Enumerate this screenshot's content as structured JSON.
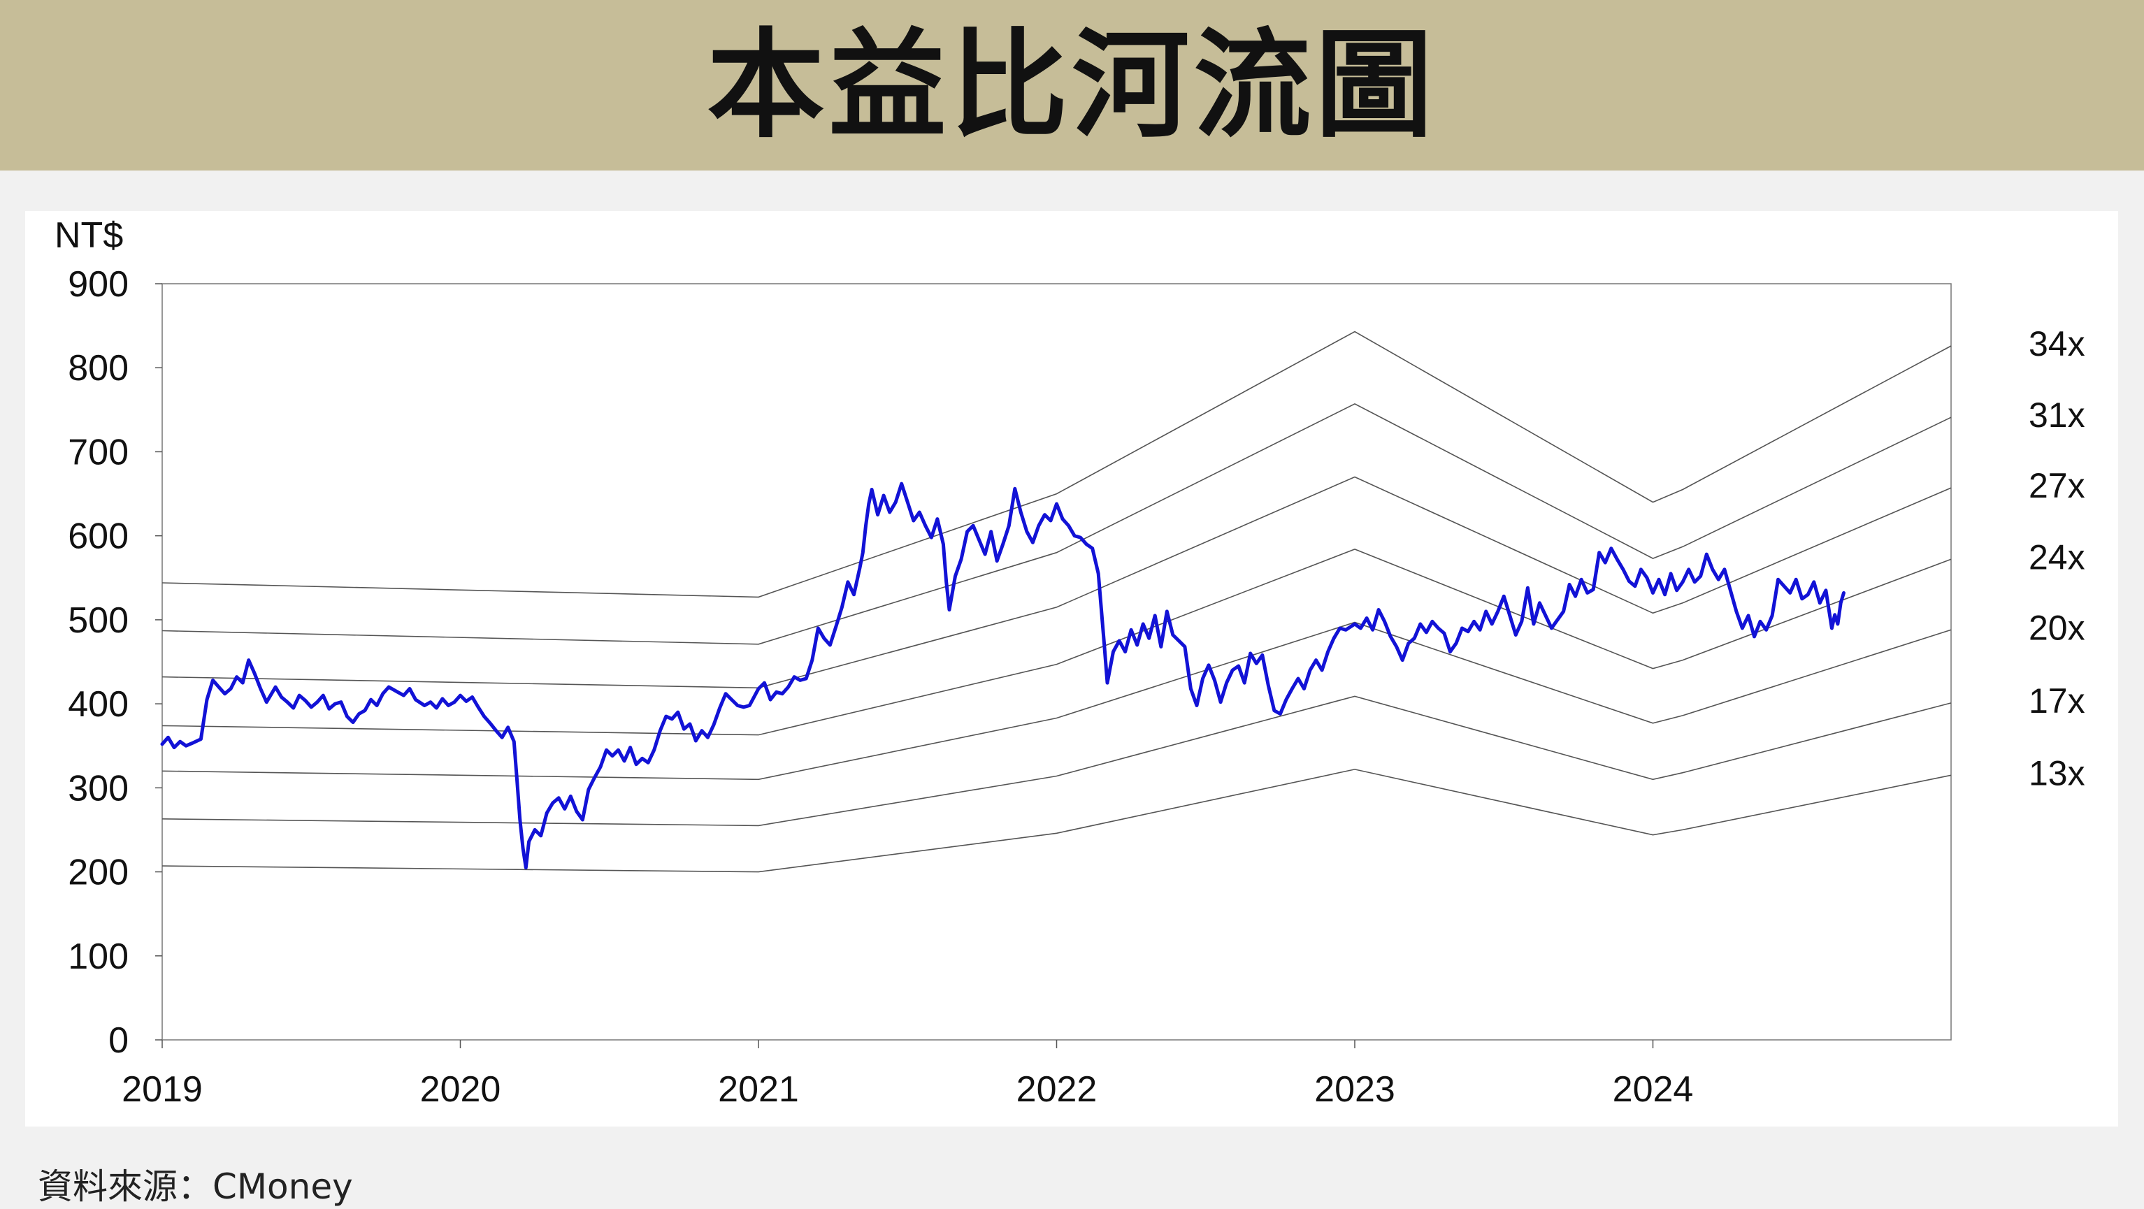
{
  "title": "本益比河流圖",
  "source": "資料來源：CMoney",
  "chart_data": {
    "type": "line",
    "ylabel": "NT$",
    "ylim": [
      0,
      900
    ],
    "yticks": [
      0,
      100,
      200,
      300,
      400,
      500,
      600,
      700,
      800,
      900
    ],
    "xlim": [
      2019.0,
      2025.0
    ],
    "xticks": [
      2019,
      2020,
      2021,
      2022,
      2023,
      2024
    ],
    "grid": false,
    "colors": {
      "price": "#1212d6",
      "bands": "#555555"
    },
    "bands": [
      {
        "name": "34x",
        "points": [
          [
            2019.0,
            544
          ],
          [
            2021.0,
            527
          ],
          [
            2022.0,
            650
          ],
          [
            2023.0,
            843
          ],
          [
            2024.0,
            640
          ],
          [
            2024.1,
            655
          ],
          [
            2025.0,
            826
          ]
        ]
      },
      {
        "name": "31x",
        "points": [
          [
            2019.0,
            487
          ],
          [
            2021.0,
            471
          ],
          [
            2022.0,
            580
          ],
          [
            2023.0,
            757
          ],
          [
            2024.0,
            573
          ],
          [
            2024.1,
            587
          ],
          [
            2025.0,
            741
          ]
        ]
      },
      {
        "name": "27x",
        "points": [
          [
            2019.0,
            432
          ],
          [
            2021.0,
            419
          ],
          [
            2022.0,
            515
          ],
          [
            2023.0,
            670
          ],
          [
            2024.0,
            508
          ],
          [
            2024.1,
            520
          ],
          [
            2025.0,
            657
          ]
        ]
      },
      {
        "name": "24x",
        "points": [
          [
            2019.0,
            374
          ],
          [
            2021.0,
            363
          ],
          [
            2022.0,
            447
          ],
          [
            2023.0,
            584
          ],
          [
            2024.0,
            442
          ],
          [
            2024.1,
            452
          ],
          [
            2025.0,
            572
          ]
        ]
      },
      {
        "name": "20x",
        "points": [
          [
            2019.0,
            320
          ],
          [
            2021.0,
            310
          ],
          [
            2022.0,
            383
          ],
          [
            2023.0,
            497
          ],
          [
            2024.0,
            377
          ],
          [
            2024.1,
            386
          ],
          [
            2025.0,
            488
          ]
        ]
      },
      {
        "name": "17x",
        "points": [
          [
            2019.0,
            263
          ],
          [
            2021.0,
            255
          ],
          [
            2022.0,
            314
          ],
          [
            2023.0,
            409
          ],
          [
            2024.0,
            310
          ],
          [
            2024.1,
            318
          ],
          [
            2025.0,
            401
          ]
        ]
      },
      {
        "name": "13x",
        "points": [
          [
            2019.0,
            207
          ],
          [
            2021.0,
            200
          ],
          [
            2022.0,
            246
          ],
          [
            2023.0,
            322
          ],
          [
            2024.0,
            244
          ],
          [
            2024.1,
            250
          ],
          [
            2025.0,
            315
          ]
        ]
      }
    ],
    "price_series": [
      [
        2019.0,
        352
      ],
      [
        2019.02,
        360
      ],
      [
        2019.04,
        348
      ],
      [
        2019.06,
        355
      ],
      [
        2019.08,
        350
      ],
      [
        2019.1,
        353
      ],
      [
        2019.13,
        358
      ],
      [
        2019.15,
        405
      ],
      [
        2019.17,
        428
      ],
      [
        2019.19,
        420
      ],
      [
        2019.21,
        412
      ],
      [
        2019.23,
        418
      ],
      [
        2019.25,
        432
      ],
      [
        2019.27,
        425
      ],
      [
        2019.29,
        452
      ],
      [
        2019.31,
        436
      ],
      [
        2019.33,
        418
      ],
      [
        2019.35,
        402
      ],
      [
        2019.38,
        420
      ],
      [
        2019.4,
        408
      ],
      [
        2019.42,
        402
      ],
      [
        2019.44,
        395
      ],
      [
        2019.46,
        410
      ],
      [
        2019.48,
        404
      ],
      [
        2019.5,
        396
      ],
      [
        2019.52,
        402
      ],
      [
        2019.54,
        410
      ],
      [
        2019.56,
        394
      ],
      [
        2019.58,
        400
      ],
      [
        2019.6,
        402
      ],
      [
        2019.62,
        385
      ],
      [
        2019.64,
        378
      ],
      [
        2019.66,
        388
      ],
      [
        2019.68,
        392
      ],
      [
        2019.7,
        405
      ],
      [
        2019.72,
        398
      ],
      [
        2019.74,
        412
      ],
      [
        2019.76,
        420
      ],
      [
        2019.79,
        414
      ],
      [
        2019.81,
        410
      ],
      [
        2019.83,
        418
      ],
      [
        2019.85,
        405
      ],
      [
        2019.88,
        398
      ],
      [
        2019.9,
        402
      ],
      [
        2019.92,
        395
      ],
      [
        2019.94,
        406
      ],
      [
        2019.96,
        398
      ],
      [
        2019.98,
        402
      ],
      [
        2020.0,
        410
      ],
      [
        2020.02,
        403
      ],
      [
        2020.04,
        408
      ],
      [
        2020.06,
        396
      ],
      [
        2020.08,
        385
      ],
      [
        2020.1,
        377
      ],
      [
        2020.12,
        368
      ],
      [
        2020.14,
        360
      ],
      [
        2020.16,
        372
      ],
      [
        2020.18,
        355
      ],
      [
        2020.19,
        310
      ],
      [
        2020.2,
        262
      ],
      [
        2020.21,
        228
      ],
      [
        2020.22,
        205
      ],
      [
        2020.23,
        236
      ],
      [
        2020.25,
        250
      ],
      [
        2020.27,
        243
      ],
      [
        2020.29,
        270
      ],
      [
        2020.31,
        282
      ],
      [
        2020.33,
        288
      ],
      [
        2020.35,
        275
      ],
      [
        2020.37,
        290
      ],
      [
        2020.39,
        272
      ],
      [
        2020.41,
        262
      ],
      [
        2020.43,
        298
      ],
      [
        2020.45,
        312
      ],
      [
        2020.47,
        325
      ],
      [
        2020.49,
        345
      ],
      [
        2020.51,
        338
      ],
      [
        2020.53,
        345
      ],
      [
        2020.55,
        332
      ],
      [
        2020.57,
        348
      ],
      [
        2020.59,
        328
      ],
      [
        2020.61,
        335
      ],
      [
        2020.63,
        330
      ],
      [
        2020.65,
        345
      ],
      [
        2020.67,
        368
      ],
      [
        2020.69,
        385
      ],
      [
        2020.71,
        382
      ],
      [
        2020.73,
        390
      ],
      [
        2020.75,
        370
      ],
      [
        2020.77,
        376
      ],
      [
        2020.79,
        356
      ],
      [
        2020.81,
        368
      ],
      [
        2020.83,
        360
      ],
      [
        2020.85,
        375
      ],
      [
        2020.87,
        395
      ],
      [
        2020.89,
        412
      ],
      [
        2020.91,
        405
      ],
      [
        2020.93,
        398
      ],
      [
        2020.95,
        396
      ],
      [
        2020.97,
        398
      ],
      [
        2021.0,
        418
      ],
      [
        2021.02,
        425
      ],
      [
        2021.04,
        405
      ],
      [
        2021.06,
        414
      ],
      [
        2021.08,
        412
      ],
      [
        2021.1,
        420
      ],
      [
        2021.12,
        432
      ],
      [
        2021.14,
        428
      ],
      [
        2021.16,
        430
      ],
      [
        2021.18,
        452
      ],
      [
        2021.2,
        490
      ],
      [
        2021.22,
        478
      ],
      [
        2021.24,
        470
      ],
      [
        2021.26,
        492
      ],
      [
        2021.28,
        515
      ],
      [
        2021.3,
        545
      ],
      [
        2021.32,
        530
      ],
      [
        2021.34,
        562
      ],
      [
        2021.35,
        580
      ],
      [
        2021.36,
        612
      ],
      [
        2021.37,
        638
      ],
      [
        2021.38,
        655
      ],
      [
        2021.4,
        625
      ],
      [
        2021.42,
        648
      ],
      [
        2021.44,
        628
      ],
      [
        2021.46,
        640
      ],
      [
        2021.48,
        662
      ],
      [
        2021.5,
        640
      ],
      [
        2021.52,
        618
      ],
      [
        2021.54,
        628
      ],
      [
        2021.56,
        612
      ],
      [
        2021.58,
        598
      ],
      [
        2021.6,
        620
      ],
      [
        2021.62,
        590
      ],
      [
        2021.63,
        545
      ],
      [
        2021.64,
        512
      ],
      [
        2021.66,
        552
      ],
      [
        2021.68,
        572
      ],
      [
        2021.7,
        605
      ],
      [
        2021.72,
        612
      ],
      [
        2021.74,
        595
      ],
      [
        2021.76,
        578
      ],
      [
        2021.78,
        605
      ],
      [
        2021.8,
        570
      ],
      [
        2021.82,
        590
      ],
      [
        2021.84,
        612
      ],
      [
        2021.86,
        656
      ],
      [
        2021.88,
        628
      ],
      [
        2021.9,
        605
      ],
      [
        2021.92,
        592
      ],
      [
        2021.94,
        612
      ],
      [
        2021.96,
        625
      ],
      [
        2021.98,
        618
      ],
      [
        2022.0,
        638
      ],
      [
        2022.02,
        620
      ],
      [
        2022.04,
        612
      ],
      [
        2022.06,
        600
      ],
      [
        2022.08,
        598
      ],
      [
        2022.1,
        590
      ],
      [
        2022.12,
        585
      ],
      [
        2022.14,
        555
      ],
      [
        2022.16,
        470
      ],
      [
        2022.17,
        425
      ],
      [
        2022.19,
        462
      ],
      [
        2022.21,
        475
      ],
      [
        2022.23,
        462
      ],
      [
        2022.25,
        488
      ],
      [
        2022.27,
        470
      ],
      [
        2022.29,
        495
      ],
      [
        2022.31,
        478
      ],
      [
        2022.33,
        505
      ],
      [
        2022.35,
        468
      ],
      [
        2022.37,
        510
      ],
      [
        2022.39,
        482
      ],
      [
        2022.41,
        475
      ],
      [
        2022.43,
        468
      ],
      [
        2022.45,
        418
      ],
      [
        2022.47,
        398
      ],
      [
        2022.49,
        430
      ],
      [
        2022.51,
        446
      ],
      [
        2022.53,
        428
      ],
      [
        2022.55,
        402
      ],
      [
        2022.57,
        425
      ],
      [
        2022.59,
        440
      ],
      [
        2022.61,
        445
      ],
      [
        2022.63,
        425
      ],
      [
        2022.65,
        460
      ],
      [
        2022.67,
        448
      ],
      [
        2022.69,
        458
      ],
      [
        2022.71,
        422
      ],
      [
        2022.73,
        392
      ],
      [
        2022.75,
        388
      ],
      [
        2022.77,
        405
      ],
      [
        2022.79,
        418
      ],
      [
        2022.81,
        430
      ],
      [
        2022.83,
        418
      ],
      [
        2022.85,
        440
      ],
      [
        2022.87,
        452
      ],
      [
        2022.89,
        440
      ],
      [
        2022.91,
        462
      ],
      [
        2022.93,
        478
      ],
      [
        2022.95,
        490
      ],
      [
        2022.97,
        488
      ],
      [
        2023.0,
        495
      ],
      [
        2023.02,
        490
      ],
      [
        2023.04,
        502
      ],
      [
        2023.06,
        488
      ],
      [
        2023.08,
        512
      ],
      [
        2023.1,
        498
      ],
      [
        2023.12,
        480
      ],
      [
        2023.14,
        468
      ],
      [
        2023.16,
        452
      ],
      [
        2023.18,
        472
      ],
      [
        2023.2,
        478
      ],
      [
        2023.22,
        495
      ],
      [
        2023.24,
        485
      ],
      [
        2023.26,
        498
      ],
      [
        2023.28,
        490
      ],
      [
        2023.3,
        484
      ],
      [
        2023.32,
        462
      ],
      [
        2023.34,
        472
      ],
      [
        2023.36,
        490
      ],
      [
        2023.38,
        486
      ],
      [
        2023.4,
        498
      ],
      [
        2023.42,
        488
      ],
      [
        2023.44,
        510
      ],
      [
        2023.46,
        495
      ],
      [
        2023.48,
        510
      ],
      [
        2023.5,
        528
      ],
      [
        2023.52,
        505
      ],
      [
        2023.54,
        482
      ],
      [
        2023.56,
        498
      ],
      [
        2023.58,
        538
      ],
      [
        2023.6,
        495
      ],
      [
        2023.62,
        520
      ],
      [
        2023.64,
        505
      ],
      [
        2023.66,
        490
      ],
      [
        2023.68,
        500
      ],
      [
        2023.7,
        510
      ],
      [
        2023.72,
        542
      ],
      [
        2023.74,
        528
      ],
      [
        2023.76,
        548
      ],
      [
        2023.78,
        532
      ],
      [
        2023.8,
        536
      ],
      [
        2023.82,
        580
      ],
      [
        2023.84,
        568
      ],
      [
        2023.86,
        585
      ],
      [
        2023.88,
        572
      ],
      [
        2023.9,
        560
      ],
      [
        2023.92,
        546
      ],
      [
        2023.94,
        540
      ],
      [
        2023.96,
        560
      ],
      [
        2023.98,
        550
      ],
      [
        2024.0,
        532
      ],
      [
        2024.02,
        548
      ],
      [
        2024.04,
        530
      ],
      [
        2024.06,
        555
      ],
      [
        2024.08,
        535
      ],
      [
        2024.1,
        545
      ],
      [
        2024.12,
        560
      ],
      [
        2024.14,
        545
      ],
      [
        2024.16,
        552
      ],
      [
        2024.18,
        578
      ],
      [
        2024.2,
        560
      ],
      [
        2024.22,
        548
      ],
      [
        2024.24,
        560
      ],
      [
        2024.26,
        535
      ],
      [
        2024.28,
        510
      ],
      [
        2024.3,
        490
      ],
      [
        2024.32,
        505
      ],
      [
        2024.34,
        480
      ],
      [
        2024.36,
        498
      ],
      [
        2024.38,
        488
      ],
      [
        2024.4,
        505
      ],
      [
        2024.42,
        548
      ],
      [
        2024.44,
        540
      ],
      [
        2024.46,
        532
      ],
      [
        2024.48,
        548
      ],
      [
        2024.5,
        525
      ],
      [
        2024.52,
        530
      ],
      [
        2024.54,
        545
      ],
      [
        2024.56,
        520
      ],
      [
        2024.58,
        535
      ],
      [
        2024.6,
        490
      ],
      [
        2024.61,
        506
      ],
      [
        2024.62,
        495
      ],
      [
        2024.63,
        520
      ],
      [
        2024.64,
        532
      ]
    ]
  }
}
